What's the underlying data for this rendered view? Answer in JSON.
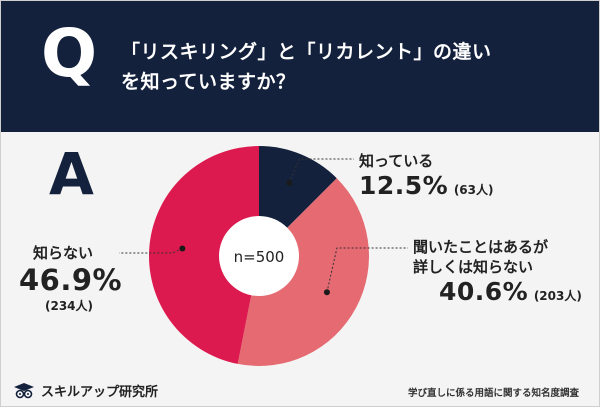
{
  "header": {
    "q_letter": "Q",
    "question_line1": "「リスキリング」と「リカレント」の違い",
    "question_line2": "を知っていますか？"
  },
  "answer_letter": "A",
  "chart_data": {
    "type": "pie",
    "title": "「リスキリング」と「リカレント」の違いを知っていますか？",
    "center_label": "n=500",
    "slices": [
      {
        "name": "知っている",
        "name_line2": "",
        "percent": 12.5,
        "percent_label": "12.5%",
        "count_label": "(63人)",
        "color": "#13213c"
      },
      {
        "name": "聞いたことはあるが",
        "name_line2": "詳しくは知らない",
        "percent": 40.6,
        "percent_label": "40.6%",
        "count_label": "(203人)",
        "color": "#e56a72"
      },
      {
        "name": "知らない",
        "name_line2": "",
        "percent": 46.9,
        "percent_label": "46.9%",
        "count_label": "(234人)",
        "color": "#dd1a4f"
      }
    ]
  },
  "footer": {
    "logo_text": "スキルアップ研究所",
    "note": "学び直しに係る用語に関する知名度調査"
  }
}
